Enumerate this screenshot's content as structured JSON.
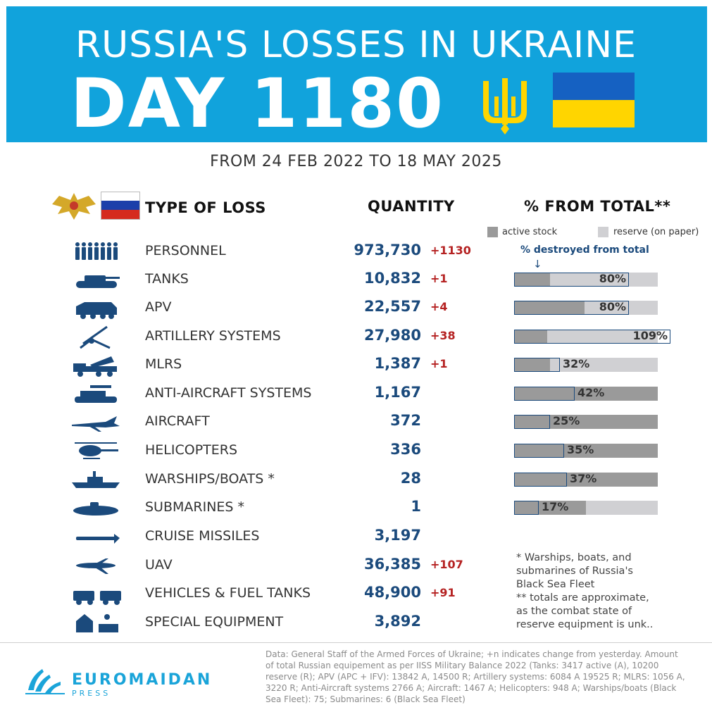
{
  "banner": {
    "title": "RUSSIA'S LOSSES IN UKRAINE",
    "day": "DAY 1180"
  },
  "subtitle": "FROM 24 FEB 2022 TO 18 MAY 2025",
  "headers": {
    "type": "TYPE OF LOSS",
    "quantity": "QUANTITY",
    "percent": "% FROM TOTAL**"
  },
  "legend": {
    "active": "active stock",
    "reserve": "reserve (on paper)",
    "destroyed_note": "% destroyed from total",
    "arrow": "↓"
  },
  "colors": {
    "banner": "#11a3dc",
    "quantity": "#1b4a7c",
    "delta": "#b52222",
    "active": "#9a9a9a",
    "reserve": "#d0d0d3",
    "flag_blue": "#1561c2",
    "flag_yellow": "#ffd500"
  },
  "chart_data": {
    "type": "table",
    "columns": [
      "TYPE OF LOSS",
      "QUANTITY",
      "% FROM TOTAL**"
    ],
    "rows": [
      {
        "icon": "soldiers-icon",
        "label": "PERSONNEL",
        "qty": "973,730",
        "delta": "+1130",
        "bar": null
      },
      {
        "icon": "tank-icon",
        "label": "TANKS",
        "qty": "10,832",
        "delta": "+1",
        "bar": {
          "active_frac": 0.25,
          "destroyed_pct": 80,
          "label": "80%"
        }
      },
      {
        "icon": "apv-icon",
        "label": "APV",
        "qty": "22,557",
        "delta": "+4",
        "bar": {
          "active_frac": 0.49,
          "destroyed_pct": 80,
          "label": "80%"
        }
      },
      {
        "icon": "artillery-icon",
        "label": "ARTILLERY SYSTEMS",
        "qty": "27,980",
        "delta": "+38",
        "bar": {
          "active_frac": 0.23,
          "destroyed_pct": 109,
          "label": "109%"
        }
      },
      {
        "icon": "mlrs-icon",
        "label": "MLRS",
        "qty": "1,387",
        "delta": "+1",
        "bar": {
          "active_frac": 0.25,
          "destroyed_pct": 32,
          "label": "32%"
        }
      },
      {
        "icon": "anti-aircraft-icon",
        "label": "ANTI-AIRCRAFT SYSTEMS",
        "qty": "1,167",
        "delta": "",
        "bar": {
          "active_frac": 1.0,
          "destroyed_pct": 42,
          "label": "42%"
        }
      },
      {
        "icon": "aircraft-icon",
        "label": "AIRCRAFT",
        "qty": "372",
        "delta": "",
        "bar": {
          "active_frac": 1.0,
          "destroyed_pct": 25,
          "label": "25%"
        }
      },
      {
        "icon": "helicopter-icon",
        "label": "HELICOPTERS",
        "qty": "336",
        "delta": "",
        "bar": {
          "active_frac": 1.0,
          "destroyed_pct": 35,
          "label": "35%"
        }
      },
      {
        "icon": "warship-icon",
        "label": "WARSHIPS/BOATS *",
        "qty": "28",
        "delta": "",
        "bar": {
          "active_frac": 1.0,
          "destroyed_pct": 37,
          "label": "37%"
        }
      },
      {
        "icon": "submarine-icon",
        "label": "SUBMARINES *",
        "qty": "1",
        "delta": "",
        "bar": {
          "active_frac": 0.5,
          "destroyed_pct": 17,
          "label": "17%"
        }
      },
      {
        "icon": "cruise-missile-icon",
        "label": "CRUISE MISSILES",
        "qty": "3,197",
        "delta": "",
        "bar": null
      },
      {
        "icon": "uav-icon",
        "label": "UAV",
        "qty": "36,385",
        "delta": "+107",
        "bar": null
      },
      {
        "icon": "vehicles-icon",
        "label": "VEHICLES & FUEL TANKS",
        "qty": "48,900",
        "delta": "+91",
        "bar": null
      },
      {
        "icon": "special-equipment-icon",
        "label": "SPECIAL EQUIPMENT",
        "qty": "3,892",
        "delta": "",
        "bar": null
      }
    ]
  },
  "footnote": "* Warships, boats, and\nsubmarines of Russia's\nBlack Sea Fleet\n** totals are approximate,\nas the combat state of\nreserve equipment is unk..",
  "logo": {
    "name": "EUROMAIDAN",
    "sub": "PRESS"
  },
  "source": "Data: General Staff of the Armed Forces of Ukraine; +n indicates change from yesterday. Amount of total Russian equipement as per IISS Military Balance 2022 (Tanks: 3417 active (A), 10200 reserve (R); APV (APC + IFV): 13842 A, 14500 R; Artillery systems: 6084 A 19525 R; MLRS: 1056 A, 3220 R; Anti-Aircraft systems 2766 A; Aircraft: 1467 A; Helicopters: 948 A; Warships/boats (Black Sea Fleet): 75; Submarines: 6 (Black Sea Fleet)"
}
